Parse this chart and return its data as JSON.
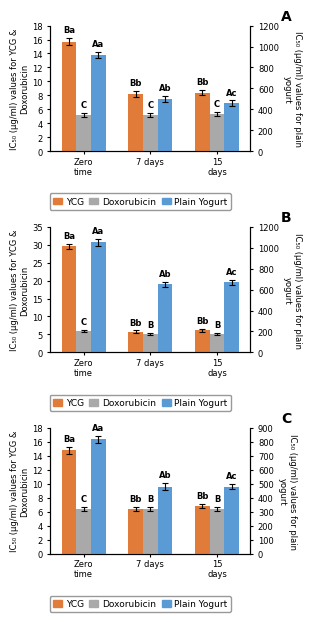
{
  "panels": [
    {
      "label": "A",
      "ylim_left": [
        0,
        18
      ],
      "yticks_left": [
        0,
        2,
        4,
        6,
        8,
        10,
        12,
        14,
        16,
        18
      ],
      "ylim_right": [
        0,
        1200
      ],
      "yticks_right": [
        0,
        200,
        400,
        600,
        800,
        1000,
        1200
      ],
      "ylabel_left": "IC₅₀ (μg/ml) values for YCG &\nDoxorubicin",
      "ylabel_right": "IC₅₀ (μg/ml) values for plain\nyogurt",
      "groups": [
        "Zero\ntime",
        "7 days",
        "15\ndays"
      ],
      "ycg": [
        15.7,
        8.2,
        8.4
      ],
      "doxo": [
        5.2,
        5.2,
        5.3
      ],
      "plain": [
        920,
        500,
        460
      ],
      "ycg_err": [
        0.5,
        0.4,
        0.4
      ],
      "doxo_err": [
        0.3,
        0.3,
        0.3
      ],
      "plain_err": [
        30,
        25,
        25
      ],
      "annotations_ycg": [
        "Ba",
        "Bb",
        "Bb"
      ],
      "annotations_doxo": [
        "C",
        "C",
        "C"
      ],
      "annotations_plain": [
        "Aa",
        "Ab",
        "Ac"
      ]
    },
    {
      "label": "B",
      "ylim_left": [
        0,
        35
      ],
      "yticks_left": [
        0,
        5,
        10,
        15,
        20,
        25,
        30,
        35
      ],
      "ylim_right": [
        0,
        1200
      ],
      "yticks_right": [
        0,
        200,
        400,
        600,
        800,
        1000,
        1200
      ],
      "ylabel_left": "IC₅₀ (μg/ml) values for YCG &\nDoxorubicin",
      "ylabel_right": "IC₅₀ (μg/ml) values for plain\nyogurt",
      "groups": [
        "Zero\ntime",
        "7 days",
        "15\ndays"
      ],
      "ycg": [
        29.5,
        5.8,
        6.2
      ],
      "doxo": [
        6.0,
        5.2,
        5.2
      ],
      "plain": [
        1050,
        650,
        670
      ],
      "ycg_err": [
        0.8,
        0.3,
        0.4
      ],
      "doxo_err": [
        0.3,
        0.3,
        0.3
      ],
      "plain_err": [
        30,
        25,
        25
      ],
      "annotations_ycg": [
        "Ba",
        "Bb",
        "Bb"
      ],
      "annotations_doxo": [
        "C",
        "B",
        "B"
      ],
      "annotations_plain": [
        "Aa",
        "Ab",
        "Ac"
      ]
    },
    {
      "label": "C",
      "ylim_left": [
        0,
        18
      ],
      "yticks_left": [
        0,
        2,
        4,
        6,
        8,
        10,
        12,
        14,
        16,
        18
      ],
      "ylim_right": [
        0,
        900
      ],
      "yticks_right": [
        0,
        100,
        200,
        300,
        400,
        500,
        600,
        700,
        800,
        900
      ],
      "ylabel_left": "IC₅₀ (μg/ml) values for YCG &\nDoxorubicin",
      "ylabel_right": "IC₅₀ (μg/ml) values for plain\nyogurt",
      "groups": [
        "Zero\ntime",
        "7 days",
        "15\ndays"
      ],
      "ycg": [
        14.8,
        6.4,
        6.8
      ],
      "doxo": [
        6.4,
        6.4,
        6.4
      ],
      "plain": [
        820,
        480,
        480
      ],
      "ycg_err": [
        0.5,
        0.3,
        0.3
      ],
      "doxo_err": [
        0.3,
        0.3,
        0.3
      ],
      "plain_err": [
        25,
        25,
        20
      ],
      "annotations_ycg": [
        "Ba",
        "Bb",
        "Bb"
      ],
      "annotations_doxo": [
        "C",
        "B",
        "B"
      ],
      "annotations_plain": [
        "Aa",
        "Ab",
        "Ac"
      ]
    }
  ],
  "bar_colors": [
    "#E07B39",
    "#A9A9A9",
    "#5B9BD5"
  ],
  "legend_labels": [
    "YCG",
    "Doxorubicin",
    "Plain Yogurt"
  ],
  "bar_width": 0.22,
  "background_color": "#ffffff",
  "tick_fontsize": 6.0,
  "label_fontsize": 6.0,
  "annot_fontsize": 6.0,
  "legend_fontsize": 6.5
}
